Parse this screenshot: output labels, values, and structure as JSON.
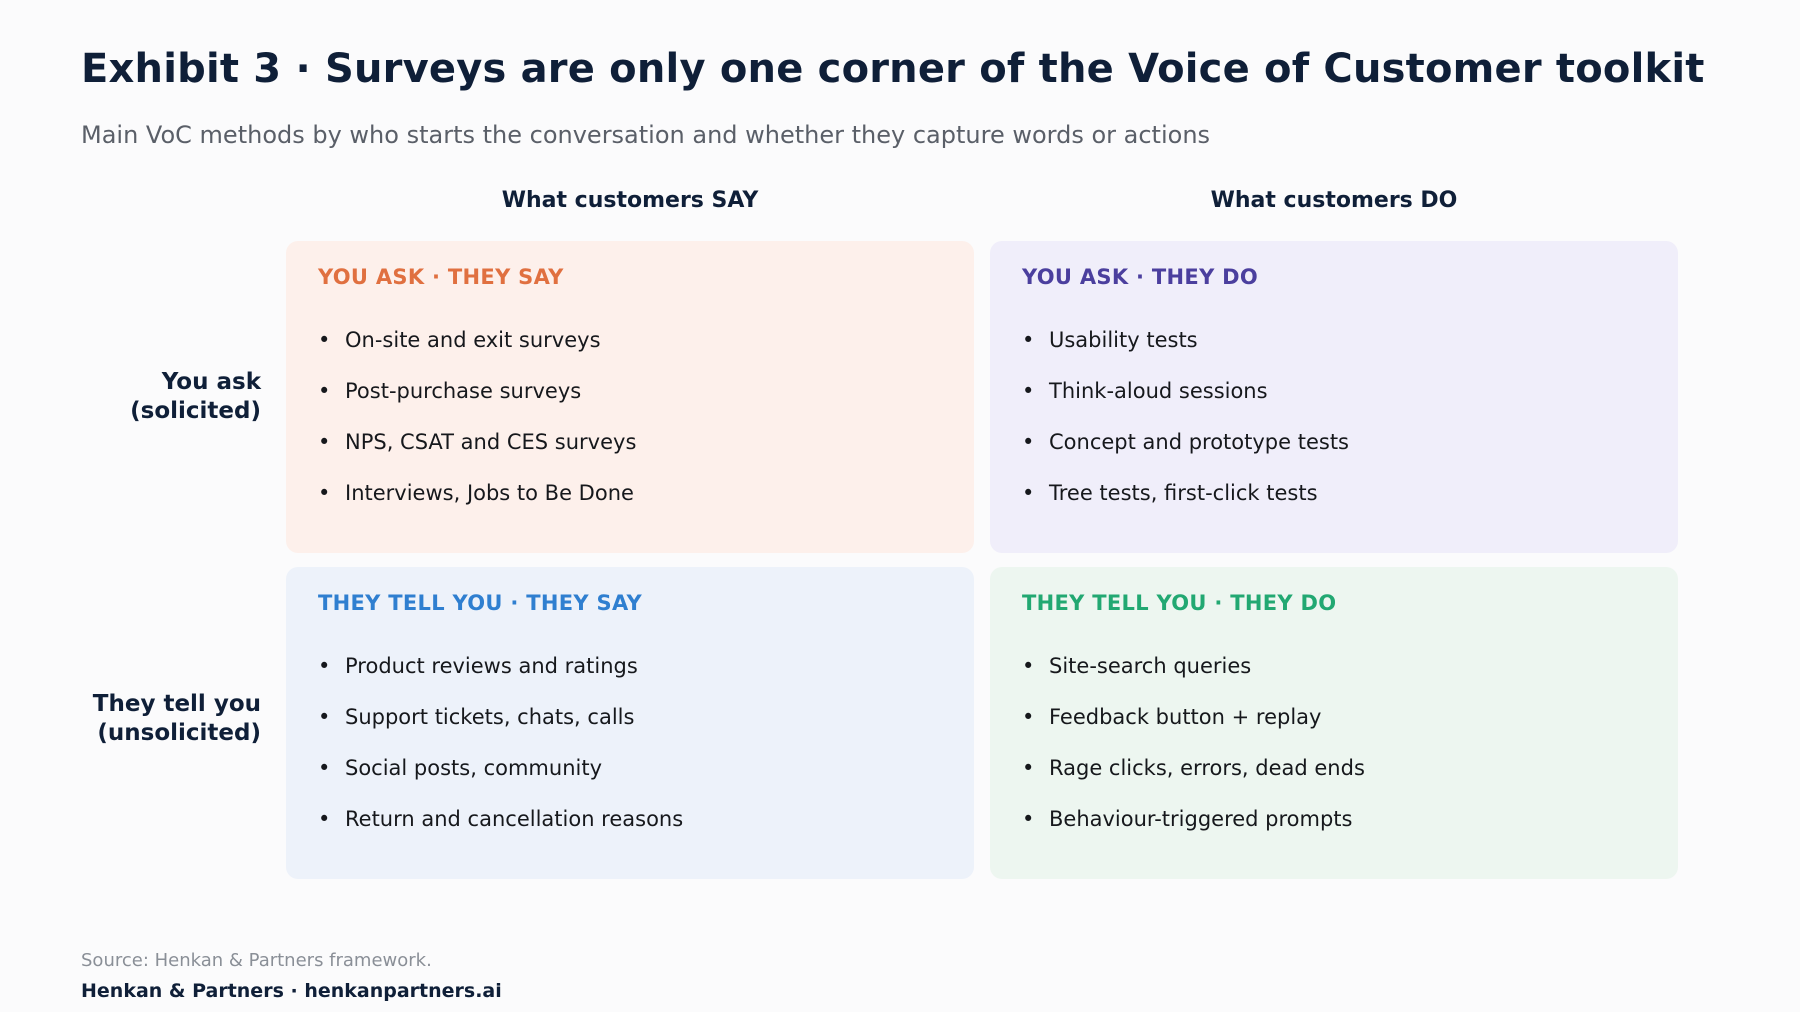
{
  "header": {
    "title": "Exhibit 3 · Surveys are only one corner of the Voice of Customer toolkit",
    "subtitle": "Main VoC methods by who starts the conversation and whether they capture words or actions"
  },
  "columns": {
    "say": "What customers SAY",
    "do": "What customers DO"
  },
  "rows": {
    "ask": {
      "line1": "You ask",
      "line2": "(solicited)"
    },
    "tell": {
      "line1": "They tell you",
      "line2": "(unsolicited)"
    }
  },
  "quadrants": {
    "ask_say": {
      "title": "YOU ASK · THEY SAY",
      "color": "#e07040",
      "items": [
        "On-site and exit surveys",
        "Post-purchase surveys",
        "NPS, CSAT and CES surveys",
        "Interviews, Jobs to Be Done"
      ]
    },
    "ask_do": {
      "title": "YOU ASK · THEY DO",
      "color": "#4b3f9e",
      "items": [
        "Usability tests",
        "Think-aloud sessions",
        "Concept and prototype tests",
        "Tree tests, first-click tests"
      ]
    },
    "tell_say": {
      "title": "THEY TELL YOU · THEY SAY",
      "color": "#2f7fd0",
      "items": [
        "Product reviews and ratings",
        "Support tickets, chats, calls",
        "Social posts, community",
        "Return and cancellation reasons"
      ]
    },
    "tell_do": {
      "title": "THEY TELL YOU · THEY DO",
      "color": "#22a872",
      "items": [
        "Site-search queries",
        "Feedback button + replay",
        "Rage clicks, errors, dead ends",
        "Behaviour-triggered prompts"
      ]
    }
  },
  "footer": {
    "source": "Source: Henkan & Partners framework.",
    "brand": "Henkan & Partners · henkanpartners.ai"
  }
}
